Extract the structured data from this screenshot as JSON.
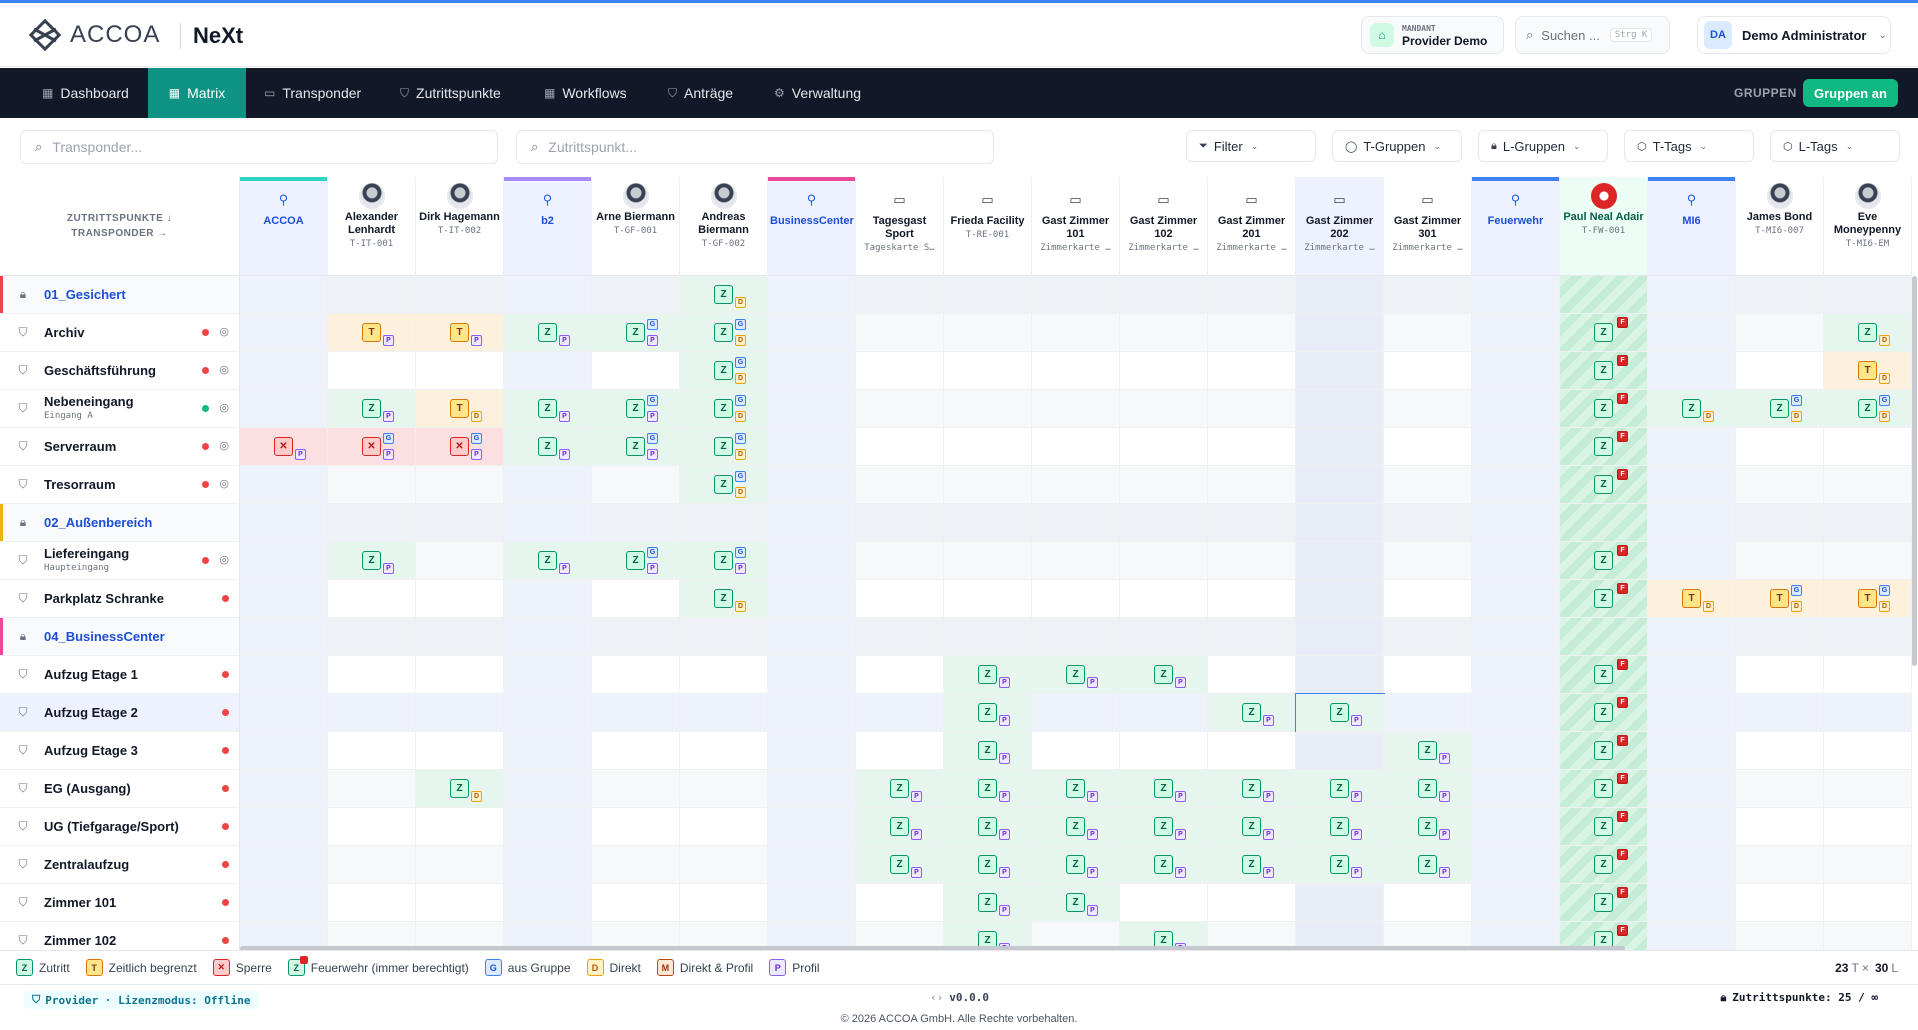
{
  "header": {
    "brand": "ACCOA",
    "product": "NeXt",
    "mandant_label": "MANDANT",
    "mandant_name": "Provider Demo",
    "search_placeholder": "Suchen ...",
    "search_shortcut": "Strg K",
    "user_initials": "DA",
    "user_name": "Demo Administrator"
  },
  "nav": {
    "items": [
      {
        "label": "Dashboard",
        "icon": "grid-icon"
      },
      {
        "label": "Matrix",
        "icon": "grid-icon",
        "active": true
      },
      {
        "label": "Transponder",
        "icon": "card-icon"
      },
      {
        "label": "Zutrittspunkte",
        "icon": "shield-icon"
      },
      {
        "label": "Workflows",
        "icon": "grid-icon"
      },
      {
        "label": "Anträge",
        "icon": "shield-icon"
      },
      {
        "label": "Verwaltung",
        "icon": "gear-icon"
      }
    ],
    "groups_label": "GRUPPEN",
    "groups_button": "Gruppen an"
  },
  "filters": {
    "transponder_placeholder": "Transponder...",
    "zutrittspunkt_placeholder": "Zutrittspunkt...",
    "buttons": [
      "Filter",
      "T-Gruppen",
      "L-Gruppen",
      "T-Tags",
      "L-Tags"
    ]
  },
  "matrix": {
    "corner_line1": "ZUTRITTSPUNKTE ↓",
    "corner_line2": "TRANSPONDER →",
    "columns": [
      {
        "name": "ACCOA",
        "id": "",
        "kind": "group",
        "color": "#2dd4bf"
      },
      {
        "name": "Alexander Lenhardt",
        "id": "T-IT-001",
        "kind": "person"
      },
      {
        "name": "Dirk Hagemann",
        "id": "T-IT-002",
        "kind": "person"
      },
      {
        "name": "b2",
        "id": "",
        "kind": "group",
        "color": "#a78bfa"
      },
      {
        "name": "Arne Biermann",
        "id": "T-GF-001",
        "kind": "person"
      },
      {
        "name": "Andreas Biermann",
        "id": "T-GF-002",
        "kind": "person"
      },
      {
        "name": "BusinessCenter",
        "id": "",
        "kind": "group",
        "color": "#ec4899"
      },
      {
        "name": "Tagesgast Sport",
        "id": "Tageskarte S…",
        "kind": "card"
      },
      {
        "name": "Frieda Facility",
        "id": "T-RE-001",
        "kind": "card"
      },
      {
        "name": "Gast Zimmer 101",
        "id": "Zimmerkarte …",
        "kind": "card"
      },
      {
        "name": "Gast Zimmer 102",
        "id": "Zimmerkarte …",
        "kind": "card"
      },
      {
        "name": "Gast Zimmer 201",
        "id": "Zimmerkarte …",
        "kind": "card"
      },
      {
        "name": "Gast Zimmer 202",
        "id": "Zimmerkarte …",
        "kind": "card",
        "selected": true
      },
      {
        "name": "Gast Zimmer 301",
        "id": "Zimmerkarte …",
        "kind": "card"
      },
      {
        "name": "Feuerwehr",
        "id": "",
        "kind": "group",
        "color": "#3b82f6"
      },
      {
        "name": "Paul Neal Adair",
        "id": "T-FW-001",
        "kind": "fire"
      },
      {
        "name": "MI6",
        "id": "",
        "kind": "group",
        "color": "#3b82f6"
      },
      {
        "name": "James Bond",
        "id": "T-MI6-007",
        "kind": "person"
      },
      {
        "name": "Eve Moneypenny",
        "id": "T-MI6-EM",
        "kind": "person"
      }
    ],
    "rows": [
      {
        "name": "01_Gesichert",
        "sub": "",
        "kind": "group",
        "color": "#ef4444",
        "cells": [
          null,
          null,
          null,
          null,
          null,
          "Z|D"
        ]
      },
      {
        "name": "Archiv",
        "sub": "",
        "kind": "point",
        "status": "red",
        "pin": true,
        "cells": [
          null,
          "T|P",
          "T|P",
          "Z|P",
          "Z|PG",
          "Z|DG",
          null,
          null,
          null,
          null,
          null,
          null,
          null,
          null,
          null,
          "Z|F",
          null,
          null,
          "Z|D"
        ]
      },
      {
        "name": "Geschäftsführung",
        "sub": "",
        "kind": "point",
        "status": "red",
        "pin": true,
        "cells": [
          null,
          null,
          null,
          null,
          null,
          "Z|DG",
          null,
          null,
          null,
          null,
          null,
          null,
          null,
          null,
          null,
          "Z|F",
          null,
          null,
          "T|D"
        ]
      },
      {
        "name": "Nebeneingang",
        "sub": "Eingang A",
        "kind": "point",
        "status": "green",
        "pin": true,
        "cells": [
          null,
          "Z|P",
          "T|D",
          "Z|P",
          "Z|PG",
          "Z|DG",
          null,
          null,
          null,
          null,
          null,
          null,
          null,
          null,
          null,
          "Z|F",
          "Z|D",
          "Z|DG",
          "Z|DG"
        ]
      },
      {
        "name": "Serverraum",
        "sub": "",
        "kind": "point",
        "status": "red",
        "pin": true,
        "cells": [
          "X|P",
          "X|PG",
          "X|PG",
          "Z|P",
          "Z|PG",
          "Z|DG",
          null,
          null,
          null,
          null,
          null,
          null,
          null,
          null,
          null,
          "Z|F"
        ]
      },
      {
        "name": "Tresorraum",
        "sub": "",
        "kind": "point",
        "status": "red",
        "pin": true,
        "cells": [
          null,
          null,
          null,
          null,
          null,
          "Z|DG",
          null,
          null,
          null,
          null,
          null,
          null,
          null,
          null,
          null,
          "Z|F"
        ]
      },
      {
        "name": "02_Außenbereich",
        "sub": "",
        "kind": "group",
        "color": "#eab308",
        "cells": []
      },
      {
        "name": "Liefereingang",
        "sub": "Haupteingang",
        "kind": "point",
        "status": "red",
        "pin": true,
        "cells": [
          null,
          "Z|P",
          null,
          "Z|P",
          "Z|PG",
          "Z|PG",
          null,
          null,
          null,
          null,
          null,
          null,
          null,
          null,
          null,
          "Z|F"
        ]
      },
      {
        "name": "Parkplatz Schranke",
        "sub": "",
        "kind": "point",
        "status": "red",
        "pin": false,
        "cells": [
          null,
          null,
          null,
          null,
          null,
          "Z|D",
          null,
          null,
          null,
          null,
          null,
          null,
          null,
          null,
          null,
          "Z|F",
          "T|D",
          "T|DG",
          "T|DG"
        ]
      },
      {
        "name": "04_BusinessCenter",
        "sub": "",
        "kind": "group",
        "color": "#ec4899",
        "cells": []
      },
      {
        "name": "Aufzug Etage 1",
        "sub": "",
        "kind": "point",
        "status": "red",
        "pin": false,
        "cells": [
          null,
          null,
          null,
          null,
          null,
          null,
          null,
          null,
          "Z|P",
          "Z|P",
          "Z|P",
          null,
          null,
          null,
          null,
          "Z|F"
        ]
      },
      {
        "name": "Aufzug Etage 2",
        "sub": "",
        "kind": "point",
        "status": "red",
        "pin": false,
        "selected": true,
        "cells": [
          null,
          null,
          null,
          null,
          null,
          null,
          null,
          null,
          "Z|P",
          null,
          null,
          "Z|P",
          "Z|P",
          null,
          null,
          "Z|F"
        ]
      },
      {
        "name": "Aufzug Etage 3",
        "sub": "",
        "kind": "point",
        "status": "red",
        "pin": false,
        "cells": [
          null,
          null,
          null,
          null,
          null,
          null,
          null,
          null,
          "Z|P",
          null,
          null,
          null,
          null,
          "Z|P",
          null,
          "Z|F"
        ]
      },
      {
        "name": "EG (Ausgang)",
        "sub": "",
        "kind": "point",
        "status": "red",
        "pin": false,
        "cells": [
          null,
          null,
          "Z|D",
          null,
          null,
          null,
          null,
          "Z|P",
          "Z|P",
          "Z|P",
          "Z|P",
          "Z|P",
          "Z|P",
          "Z|P",
          null,
          "Z|F"
        ]
      },
      {
        "name": "UG (Tiefgarage/Sport)",
        "sub": "",
        "kind": "point",
        "status": "red",
        "pin": false,
        "cells": [
          null,
          null,
          null,
          null,
          null,
          null,
          null,
          "Z|P",
          "Z|P",
          "Z|P",
          "Z|P",
          "Z|P",
          "Z|P",
          "Z|P",
          null,
          "Z|F"
        ]
      },
      {
        "name": "Zentralaufzug",
        "sub": "",
        "kind": "point",
        "status": "red",
        "pin": false,
        "cells": [
          null,
          null,
          null,
          null,
          null,
          null,
          null,
          "Z|P",
          "Z|P",
          "Z|P",
          "Z|P",
          "Z|P",
          "Z|P",
          "Z|P",
          null,
          "Z|F"
        ]
      },
      {
        "name": "Zimmer 101",
        "sub": "",
        "kind": "point",
        "status": "red",
        "pin": false,
        "cells": [
          null,
          null,
          null,
          null,
          null,
          null,
          null,
          null,
          "Z|P",
          "Z|P",
          null,
          null,
          null,
          null,
          null,
          "Z|F"
        ]
      },
      {
        "name": "Zimmer 102",
        "sub": "",
        "kind": "point",
        "status": "red",
        "pin": false,
        "cells": [
          null,
          null,
          null,
          null,
          null,
          null,
          null,
          null,
          "Z|P",
          null,
          "Z|P",
          null,
          null,
          null,
          null,
          "Z|F"
        ]
      }
    ]
  },
  "legend": [
    {
      "badge": "Z",
      "label": "Zutritt",
      "kind": "z"
    },
    {
      "badge": "T",
      "label": "Zeitlich begrenzt",
      "kind": "t"
    },
    {
      "badge": "✕",
      "label": "Sperre",
      "kind": "x"
    },
    {
      "badge": "Z",
      "label": "Feuerwehr (immer berechtigt)",
      "kind": "z"
    },
    {
      "badge": "G",
      "label": "aus Gruppe",
      "kind": "g"
    },
    {
      "badge": "D",
      "label": "Direkt",
      "kind": "d"
    },
    {
      "badge": "M",
      "label": "Direkt & Profil",
      "kind": "m"
    },
    {
      "badge": "P",
      "label": "Profil",
      "kind": "p"
    }
  ],
  "counts": {
    "t_count": "23",
    "t_unit": "T ×",
    "l_count": "30",
    "l_unit": "L"
  },
  "footer": {
    "provider": "Provider · Lizenzmodus: Offline",
    "version": "v0.0.0",
    "zutrittspunkte": "Zutrittspunkte: 25 / ∞",
    "copyright": "© 2026 ACCOA GmbH. Alle Rechte vorbehalten."
  },
  "colors": {
    "accent": "#0e9384",
    "nav_bg": "#111827",
    "allow": "#d1fae5",
    "time": "#fde68a",
    "deny": "#fecaca"
  }
}
